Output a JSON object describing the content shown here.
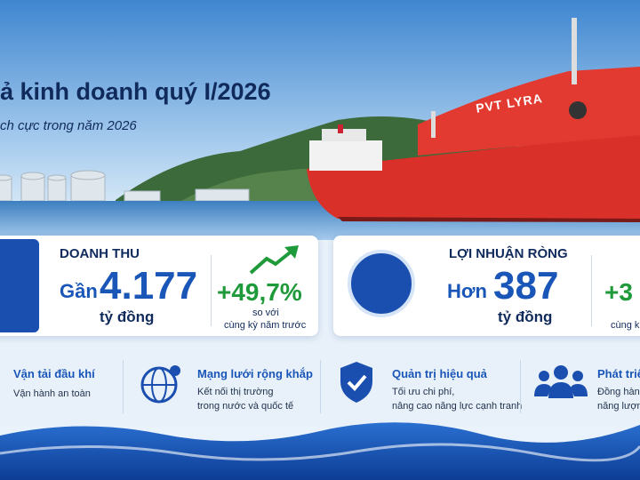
{
  "header": {
    "title": "ả kinh doanh quý I/2026",
    "subtitle": "ch cực trong năm 2026"
  },
  "ship_name": "PVT LYRA",
  "cards": [
    {
      "label": "DOANH THU",
      "prefix": "Gần",
      "value": "4.177",
      "unit": "tỷ đồng",
      "change": "+49,7%",
      "change_note": [
        "so với",
        "cùng kỳ năm trước"
      ]
    },
    {
      "label": "LỢI NHUẬN RÒNG",
      "prefix": "Hơn",
      "value": "387",
      "unit": "tỷ đồng",
      "change": "+3",
      "change_note": [
        "cùng k"
      ]
    }
  ],
  "features": [
    {
      "title": "Vận tải đầu khí",
      "lines": [
        "Vận hành an toàn"
      ]
    },
    {
      "title": "Mạng lưới rộng khắp",
      "lines": [
        "Kết nối thị trường",
        "trong nước và quốc tế"
      ]
    },
    {
      "title": "Quản trị hiệu quả",
      "lines": [
        "Tối ưu chi phí,",
        "nâng cao năng lực cạnh tranh"
      ]
    },
    {
      "title": "Phát triể",
      "lines": [
        "Đồng hành",
        "năng lượn"
      ]
    }
  ]
}
